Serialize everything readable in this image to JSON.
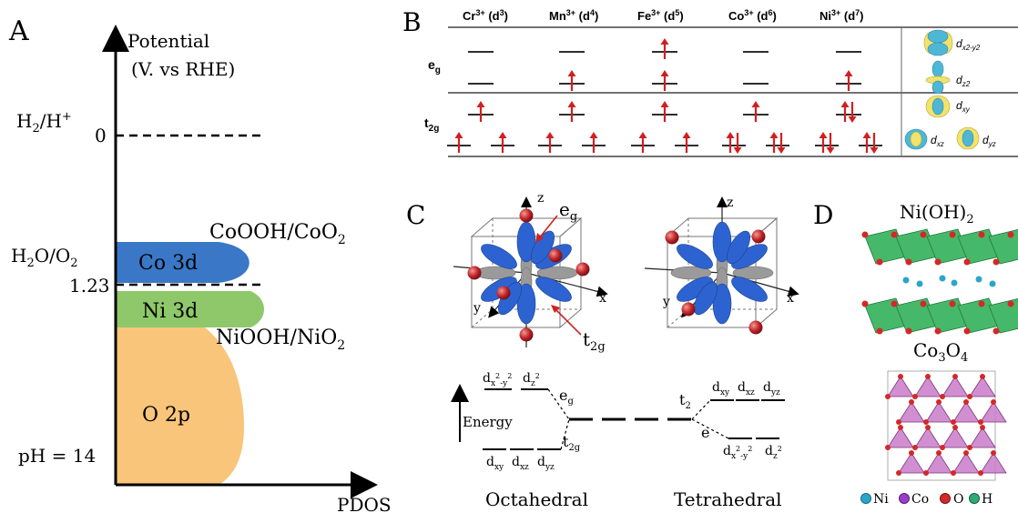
{
  "panels": {
    "a": "A",
    "b": "B",
    "c": "C",
    "d": "D"
  },
  "panel_a": {
    "y_label_1": "Potential",
    "y_label_2": "(V. vs RHE)",
    "x_label": "PDOS",
    "h2_a": "H",
    "h2_sub": "2",
    "h2_b": "/H",
    "h2_sup": "+",
    "zero": "0",
    "h2o_a": "H",
    "h2o_sub1": "2",
    "h2o_b": "O/O",
    "h2o_sub2": "2",
    "v123": "1.23",
    "ph": "pH = 14",
    "co3d": "Co 3d",
    "ni3d": "Ni 3d",
    "o2p": "O 2p",
    "cooo_a": "CoOOH/CoO",
    "cooo_sub": "2",
    "nioo_a": "NiOOH/NiO",
    "nioo_sub": "2",
    "colors": {
      "co": "#3a78c7",
      "ni": "#8ec86a",
      "o": "#f9c57a"
    }
  },
  "panel_b": {
    "ions": [
      {
        "a": "Cr",
        "sup": "3+",
        "b": " (d",
        "sup2": "3",
        "c": ")"
      },
      {
        "a": "Mn",
        "sup": "3+",
        "b": " (d",
        "sup2": "4",
        "c": ")"
      },
      {
        "a": "Fe",
        "sup": "3+",
        "b": " (d",
        "sup2": "5",
        "c": ")"
      },
      {
        "a": "Co",
        "sup": "3+",
        "b": " (d",
        "sup2": "6",
        "c": ")"
      },
      {
        "a": "Ni",
        "sup": "3+",
        "b": " (d",
        "sup2": "7",
        "c": ")"
      }
    ],
    "eg_a": "e",
    "eg_sub": "g",
    "t2g_a": "t",
    "t2g_sub": "2g",
    "orbitals": [
      {
        "a": "d",
        "sub": "x2-y2"
      },
      {
        "a": "d",
        "sub": "z2"
      },
      {
        "a": "d",
        "sub": "xy"
      },
      {
        "a": "d",
        "sub": "xz"
      },
      {
        "a": "d",
        "sub": "yz"
      }
    ]
  },
  "panel_c": {
    "z": "z",
    "x": "x",
    "y": "y",
    "eg_a": "e",
    "eg_sub": "g",
    "t2g_a": "t",
    "t2g_sub": "2g",
    "energy": "Energy",
    "oct_top": [
      {
        "a": "d",
        "sub": "x",
        "sup": "2",
        "sub2": "-y",
        "sup2": "2"
      },
      {
        "a": "d",
        "sub": "z",
        "sup": "2"
      }
    ],
    "oct_bottom": [
      "xy",
      "xz",
      "yz"
    ],
    "tet_t2_a": "t",
    "tet_t2_sub": "2",
    "tet_e": "e",
    "tet_top": [
      "xy",
      "xz",
      "yz"
    ],
    "octahedral": "Octahedral",
    "tetrahedral": "Tetrahedral"
  },
  "panel_d": {
    "nioh_a": "Ni(OH)",
    "nioh_sub": "2",
    "co3o4_a": "Co",
    "co3o4_sub1": "3",
    "co3o4_b": "O",
    "co3o4_sub2": "4",
    "legend": [
      "Ni",
      "Co",
      "O",
      "H"
    ]
  }
}
